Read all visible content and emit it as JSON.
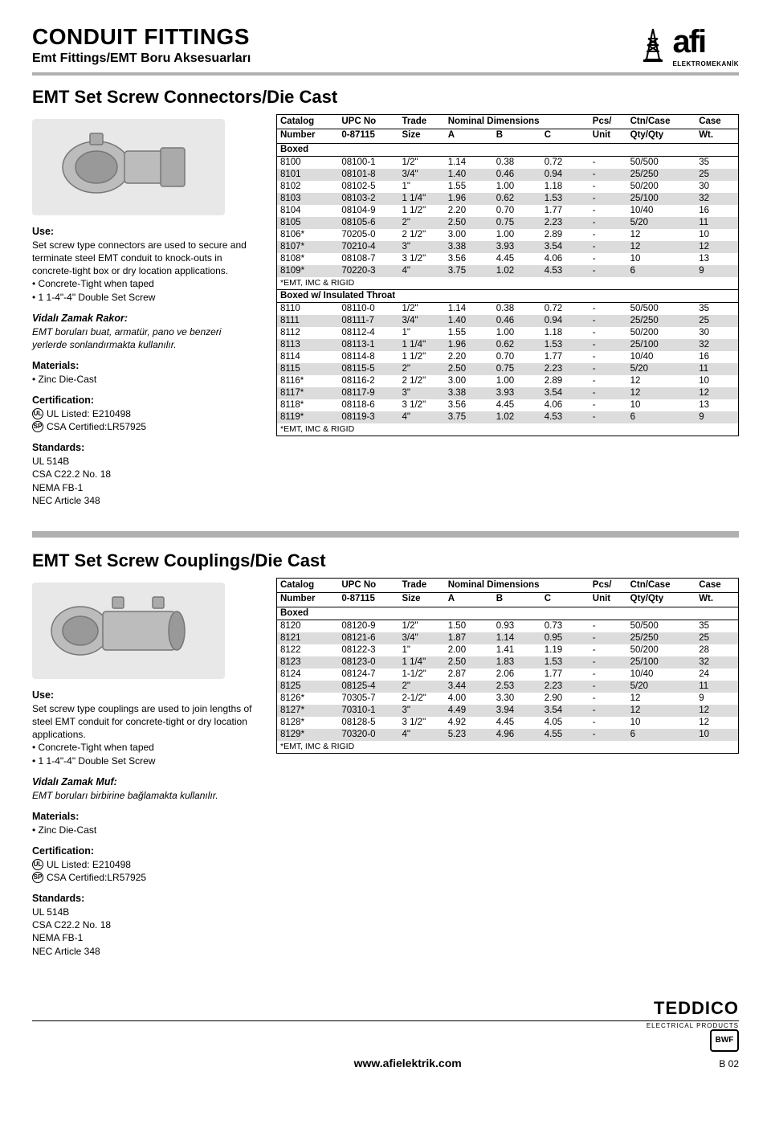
{
  "header": {
    "title": "CONDUIT FITTINGS",
    "subtitle": "Emt Fittings/EMT Boru Aksesuarları",
    "brand": "afi",
    "brand_sub": "ELEKTROMEKANİK"
  },
  "section1": {
    "title": "EMT Set Screw Connectors/Die Cast",
    "use_label": "Use:",
    "use_text": "Set screw type connectors are used to secure and terminate steel EMT conduit to knock-outs in concrete-tight box or dry location applications.",
    "use_b1": "• Concrete-Tight when taped",
    "use_b2": "• 1 1-4\"-4\" Double Set Screw",
    "tr_label": "Vidalı Zamak Rakor:",
    "tr_text": "EMT boruları buat, armatür, pano ve benzeri yerlerde sonlandırmakta kullanılır.",
    "materials_label": "Materials:",
    "materials_text": "• Zinc Die-Cast",
    "cert_label": "Certification:",
    "cert1": "UL Listed: E210498",
    "cert2": "CSA Certified:LR57925",
    "standards_label": "Standards:",
    "std1": "UL 514B",
    "std2": "CSA C22.2 No. 18",
    "std3": "NEMA FB-1",
    "std4": "NEC Article 348",
    "table": {
      "h_catalog": "Catalog",
      "h_number": "Number",
      "h_upc": "UPC No",
      "h_upc2": "0-87115",
      "h_trade": "Trade",
      "h_size": "Size",
      "h_nominal": "Nominal Dimensions",
      "h_a": "A",
      "h_b": "B",
      "h_c": "C",
      "h_pcs": "Pcs/",
      "h_unit": "Unit",
      "h_ctn": "Ctn/Case",
      "h_qty": "Qty/Qty",
      "h_case": "Case",
      "h_wt": "Wt.",
      "group1": "Boxed",
      "group2": "Boxed w/ Insulated Throat",
      "footnote": "*EMT, IMC & RIGID",
      "rows1": [
        [
          "8100",
          "08100-1",
          "1/2\"",
          "1.14",
          "0.38",
          "0.72",
          "-",
          "50/500",
          "35"
        ],
        [
          "8101",
          "08101-8",
          "3/4\"",
          "1.40",
          "0.46",
          "0.94",
          "-",
          "25/250",
          "25"
        ],
        [
          "8102",
          "08102-5",
          "1\"",
          "1.55",
          "1.00",
          "1.18",
          "-",
          "50/200",
          "30"
        ],
        [
          "8103",
          "08103-2",
          "1 1/4\"",
          "1.96",
          "0.62",
          "1.53",
          "-",
          "25/100",
          "32"
        ],
        [
          "8104",
          "08104-9",
          "1 1/2\"",
          "2.20",
          "0.70",
          "1.77",
          "-",
          "10/40",
          "16"
        ],
        [
          "8105",
          "08105-6",
          "2\"",
          "2.50",
          "0.75",
          "2.23",
          "-",
          "5/20",
          "11"
        ],
        [
          "8106*",
          "70205-0",
          "2 1/2\"",
          "3.00",
          "1.00",
          "2.89",
          "-",
          "12",
          "10"
        ],
        [
          "8107*",
          "70210-4",
          "3\"",
          "3.38",
          "3.93",
          "3.54",
          "-",
          "12",
          "12"
        ],
        [
          "8108*",
          "08108-7",
          "3 1/2\"",
          "3.56",
          "4.45",
          "4.06",
          "-",
          "10",
          "13"
        ],
        [
          "8109*",
          "70220-3",
          "4\"",
          "3.75",
          "1.02",
          "4.53",
          "-",
          "6",
          "9"
        ]
      ],
      "rows2": [
        [
          "8110",
          "08110-0",
          "1/2\"",
          "1.14",
          "0.38",
          "0.72",
          "-",
          "50/500",
          "35"
        ],
        [
          "8111",
          "08111-7",
          "3/4\"",
          "1.40",
          "0.46",
          "0.94",
          "-",
          "25/250",
          "25"
        ],
        [
          "8112",
          "08112-4",
          "1\"",
          "1.55",
          "1.00",
          "1.18",
          "-",
          "50/200",
          "30"
        ],
        [
          "8113",
          "08113-1",
          "1 1/4\"",
          "1.96",
          "0.62",
          "1.53",
          "-",
          "25/100",
          "32"
        ],
        [
          "8114",
          "08114-8",
          "1 1/2\"",
          "2.20",
          "0.70",
          "1.77",
          "-",
          "10/40",
          "16"
        ],
        [
          "8115",
          "08115-5",
          "2\"",
          "2.50",
          "0.75",
          "2.23",
          "-",
          "5/20",
          "11"
        ],
        [
          "8116*",
          "08116-2",
          "2 1/2\"",
          "3.00",
          "1.00",
          "2.89",
          "-",
          "12",
          "10"
        ],
        [
          "8117*",
          "08117-9",
          "3\"",
          "3.38",
          "3.93",
          "3.54",
          "-",
          "12",
          "12"
        ],
        [
          "8118*",
          "08118-6",
          "3 1/2\"",
          "3.56",
          "4.45",
          "4.06",
          "-",
          "10",
          "13"
        ],
        [
          "8119*",
          "08119-3",
          "4\"",
          "3.75",
          "1.02",
          "4.53",
          "-",
          "6",
          "9"
        ]
      ]
    }
  },
  "section2": {
    "title": "EMT Set Screw Couplings/Die Cast",
    "use_label": "Use:",
    "use_text": "Set screw type couplings are used to join lengths of steel EMT conduit for concrete-tight or dry location applications.",
    "use_b1": "• Concrete-Tight when taped",
    "use_b2": "• 1 1-4\"-4\" Double Set Screw",
    "tr_label": "Vidalı Zamak Muf:",
    "tr_text": "EMT boruları birbirine bağlamakta kullanılır.",
    "materials_label": "Materials:",
    "materials_text": "• Zinc Die-Cast",
    "cert_label": "Certification:",
    "cert1": "UL Listed: E210498",
    "cert2": "CSA Certified:LR57925",
    "standards_label": "Standards:",
    "std1": "UL 514B",
    "std2": "CSA C22.2 No. 18",
    "std3": "NEMA FB-1",
    "std4": "NEC Article 348",
    "table": {
      "group1": "Boxed",
      "footnote": "*EMT, IMC & RIGID",
      "rows1": [
        [
          "8120",
          "08120-9",
          "1/2\"",
          "1.50",
          "0.93",
          "0.73",
          "-",
          "50/500",
          "35"
        ],
        [
          "8121",
          "08121-6",
          "3/4\"",
          "1.87",
          "1.14",
          "0.95",
          "-",
          "25/250",
          "25"
        ],
        [
          "8122",
          "08122-3",
          "1\"",
          "2.00",
          "1.41",
          "1.19",
          "-",
          "50/200",
          "28"
        ],
        [
          "8123",
          "08123-0",
          "1 1/4\"",
          "2.50",
          "1.83",
          "1.53",
          "-",
          "25/100",
          "32"
        ],
        [
          "8124",
          "08124-7",
          "1-1/2\"",
          "2.87",
          "2.06",
          "1.77",
          "-",
          "10/40",
          "24"
        ],
        [
          "8125",
          "08125-4",
          "2\"",
          "3.44",
          "2.53",
          "2.23",
          "-",
          "5/20",
          "11"
        ],
        [
          "8126*",
          "70305-7",
          "2-1/2\"",
          "4.00",
          "3.30",
          "2.90",
          "-",
          "12",
          "9"
        ],
        [
          "8127*",
          "70310-1",
          "3\"",
          "4.49",
          "3.94",
          "3.54",
          "-",
          "12",
          "12"
        ],
        [
          "8128*",
          "08128-5",
          "3 1/2\"",
          "4.92",
          "4.45",
          "4.05",
          "-",
          "10",
          "12"
        ],
        [
          "8129*",
          "70320-0",
          "4\"",
          "5.23",
          "4.96",
          "4.55",
          "-",
          "6",
          "10"
        ]
      ]
    }
  },
  "footer": {
    "teddico": "TEDDICO",
    "teddico_sub": "ELECTRICAL PRODUCTS",
    "bwf": "BWF",
    "url": "www.afielektrik.com",
    "page": "B 02"
  }
}
